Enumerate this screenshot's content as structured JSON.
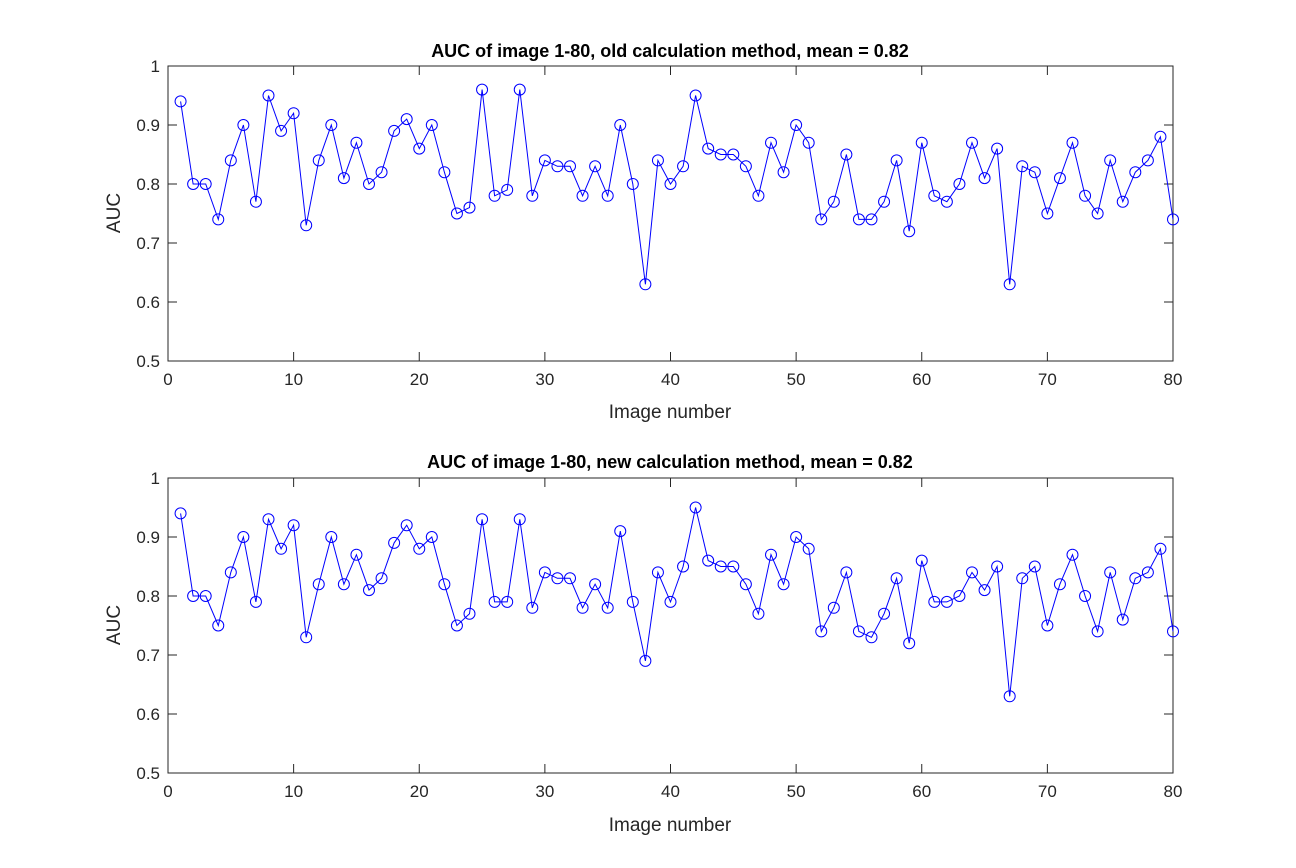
{
  "colors": {
    "series": "#0000ff",
    "axis": "#262626",
    "background": "#ffffff"
  },
  "chart_data": [
    {
      "type": "line",
      "title": "AUC of image 1-80, old calculation method, mean = 0.82",
      "xlabel": "Image number",
      "ylabel": "AUC",
      "xlim": [
        0,
        80
      ],
      "ylim": [
        0.5,
        1
      ],
      "xticks": [
        0,
        10,
        20,
        30,
        40,
        50,
        60,
        70,
        80
      ],
      "yticks": [
        0.5,
        0.6,
        0.7,
        0.8,
        0.9,
        1
      ],
      "xtick_labels": [
        "0",
        "10",
        "20",
        "30",
        "40",
        "50",
        "60",
        "70",
        "80"
      ],
      "ytick_labels": [
        "0.5",
        "0.6",
        "0.7",
        "0.8",
        "0.9",
        "1"
      ],
      "marker": "circle",
      "grid": false,
      "x": [
        1,
        2,
        3,
        4,
        5,
        6,
        7,
        8,
        9,
        10,
        11,
        12,
        13,
        14,
        15,
        16,
        17,
        18,
        19,
        20,
        21,
        22,
        23,
        24,
        25,
        26,
        27,
        28,
        29,
        30,
        31,
        32,
        33,
        34,
        35,
        36,
        37,
        38,
        39,
        40,
        41,
        42,
        43,
        44,
        45,
        46,
        47,
        48,
        49,
        50,
        51,
        52,
        53,
        54,
        55,
        56,
        57,
        58,
        59,
        60,
        61,
        62,
        63,
        64,
        65,
        66,
        67,
        68,
        69,
        70,
        71,
        72,
        73,
        74,
        75,
        76,
        77,
        78,
        79,
        80
      ],
      "values": [
        0.94,
        0.8,
        0.8,
        0.74,
        0.84,
        0.9,
        0.77,
        0.95,
        0.89,
        0.92,
        0.73,
        0.84,
        0.9,
        0.81,
        0.87,
        0.8,
        0.82,
        0.89,
        0.91,
        0.86,
        0.9,
        0.82,
        0.75,
        0.76,
        0.96,
        0.78,
        0.79,
        0.96,
        0.78,
        0.84,
        0.83,
        0.83,
        0.78,
        0.83,
        0.78,
        0.9,
        0.8,
        0.63,
        0.84,
        0.8,
        0.83,
        0.95,
        0.86,
        0.85,
        0.85,
        0.83,
        0.78,
        0.87,
        0.82,
        0.9,
        0.87,
        0.74,
        0.77,
        0.85,
        0.74,
        0.74,
        0.77,
        0.84,
        0.72,
        0.87,
        0.78,
        0.77,
        0.8,
        0.87,
        0.81,
        0.86,
        0.63,
        0.83,
        0.82,
        0.75,
        0.81,
        0.87,
        0.78,
        0.75,
        0.84,
        0.77,
        0.82,
        0.84,
        0.88,
        0.74
      ]
    },
    {
      "type": "line",
      "title": "AUC of image 1-80, new calculation method, mean = 0.82",
      "xlabel": "Image number",
      "ylabel": "AUC",
      "xlim": [
        0,
        80
      ],
      "ylim": [
        0.5,
        1
      ],
      "xticks": [
        0,
        10,
        20,
        30,
        40,
        50,
        60,
        70,
        80
      ],
      "yticks": [
        0.5,
        0.6,
        0.7,
        0.8,
        0.9,
        1
      ],
      "xtick_labels": [
        "0",
        "10",
        "20",
        "30",
        "40",
        "50",
        "60",
        "70",
        "80"
      ],
      "ytick_labels": [
        "0.5",
        "0.6",
        "0.7",
        "0.8",
        "0.9",
        "1"
      ],
      "marker": "circle",
      "grid": false,
      "x": [
        1,
        2,
        3,
        4,
        5,
        6,
        7,
        8,
        9,
        10,
        11,
        12,
        13,
        14,
        15,
        16,
        17,
        18,
        19,
        20,
        21,
        22,
        23,
        24,
        25,
        26,
        27,
        28,
        29,
        30,
        31,
        32,
        33,
        34,
        35,
        36,
        37,
        38,
        39,
        40,
        41,
        42,
        43,
        44,
        45,
        46,
        47,
        48,
        49,
        50,
        51,
        52,
        53,
        54,
        55,
        56,
        57,
        58,
        59,
        60,
        61,
        62,
        63,
        64,
        65,
        66,
        67,
        68,
        69,
        70,
        71,
        72,
        73,
        74,
        75,
        76,
        77,
        78,
        79,
        80
      ],
      "values": [
        0.94,
        0.8,
        0.8,
        0.75,
        0.84,
        0.9,
        0.79,
        0.93,
        0.88,
        0.92,
        0.73,
        0.82,
        0.9,
        0.82,
        0.87,
        0.81,
        0.83,
        0.89,
        0.92,
        0.88,
        0.9,
        0.82,
        0.75,
        0.77,
        0.93,
        0.79,
        0.79,
        0.93,
        0.78,
        0.84,
        0.83,
        0.83,
        0.78,
        0.82,
        0.78,
        0.91,
        0.79,
        0.69,
        0.84,
        0.79,
        0.85,
        0.95,
        0.86,
        0.85,
        0.85,
        0.82,
        0.77,
        0.87,
        0.82,
        0.9,
        0.88,
        0.74,
        0.78,
        0.84,
        0.74,
        0.73,
        0.77,
        0.83,
        0.72,
        0.86,
        0.79,
        0.79,
        0.8,
        0.84,
        0.81,
        0.85,
        0.63,
        0.83,
        0.85,
        0.75,
        0.82,
        0.87,
        0.8,
        0.74,
        0.84,
        0.76,
        0.83,
        0.84,
        0.88,
        0.74
      ]
    }
  ]
}
